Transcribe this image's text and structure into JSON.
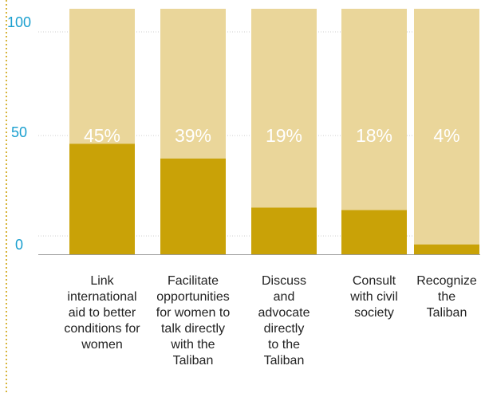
{
  "chart_data": {
    "type": "bar",
    "categories": [
      "Link international aid to better conditions for women",
      "Facilitate opportunities for women to talk directly with the Taliban",
      "Discuss and advocate directly to the Taliban",
      "Consult with civil society",
      "Recognize the Taliban"
    ],
    "category_lines": [
      [
        "Link",
        "international",
        "aid to better",
        "conditions for",
        "women"
      ],
      [
        "Facilitate",
        "opportunities",
        "for women to",
        "talk directly",
        "with the",
        "Taliban"
      ],
      [
        "Discuss",
        "and",
        "advocate",
        "directly",
        "to the",
        "Taliban"
      ],
      [
        "Consult",
        "with civil",
        "society"
      ],
      [
        "Recognize",
        "the",
        "Taliban"
      ]
    ],
    "values": [
      45,
      39,
      19,
      18,
      4
    ],
    "bar_value_max": 100,
    "data_labels": [
      "45%",
      "39%",
      "19%",
      "18%",
      "4%"
    ],
    "yticks": [
      "0",
      "50",
      "100"
    ],
    "ylim": [
      0,
      100
    ],
    "grid": true,
    "colors": {
      "value": "#c9a207",
      "remainder": "#ead69a",
      "tick_text": "#1a9fcf",
      "axis": "#d6b43a",
      "grid": "#cfcfcf",
      "label_text": "#ffffff"
    }
  }
}
